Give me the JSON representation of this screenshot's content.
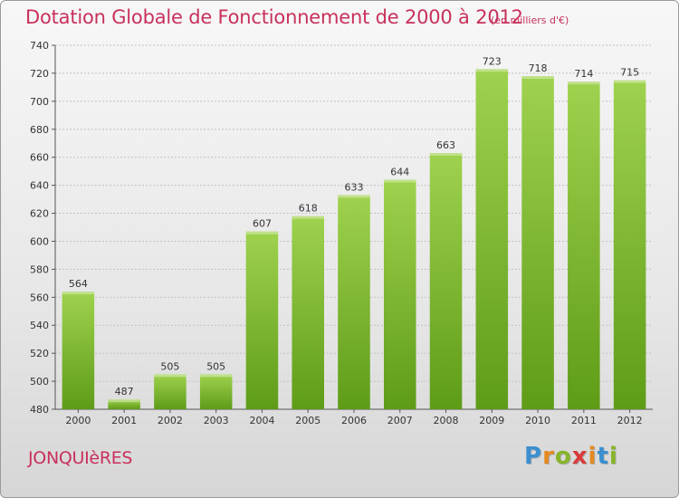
{
  "title": "Dotation Globale de Fonctionnement de 2000 à 2012",
  "unit": "(en milliers d'€)",
  "commune": "JONQUIèRES",
  "logo": {
    "letters": [
      "P",
      "r",
      "o",
      "x",
      "i",
      "t",
      "i"
    ],
    "colors": [
      "#3a8fd0",
      "#e68a1e",
      "#88b52a",
      "#d93a3a",
      "#e68a1e",
      "#3a8fd0",
      "#88b52a"
    ]
  },
  "colors": {
    "title": "#c8315b",
    "bar_top": "#9fd24e",
    "bar_bottom": "#5e9c18"
  },
  "chart_data": {
    "type": "bar",
    "categories": [
      "2000",
      "2001",
      "2002",
      "2003",
      "2004",
      "2005",
      "2006",
      "2007",
      "2008",
      "2009",
      "2010",
      "2011",
      "2012"
    ],
    "values": [
      564,
      487,
      505,
      505,
      607,
      618,
      633,
      644,
      663,
      723,
      718,
      714,
      715
    ],
    "ylim": [
      480,
      740
    ],
    "yticks": [
      480,
      500,
      520,
      540,
      560,
      580,
      600,
      620,
      640,
      660,
      680,
      700,
      720,
      740
    ],
    "grid": true,
    "xlabel": "",
    "ylabel": ""
  }
}
